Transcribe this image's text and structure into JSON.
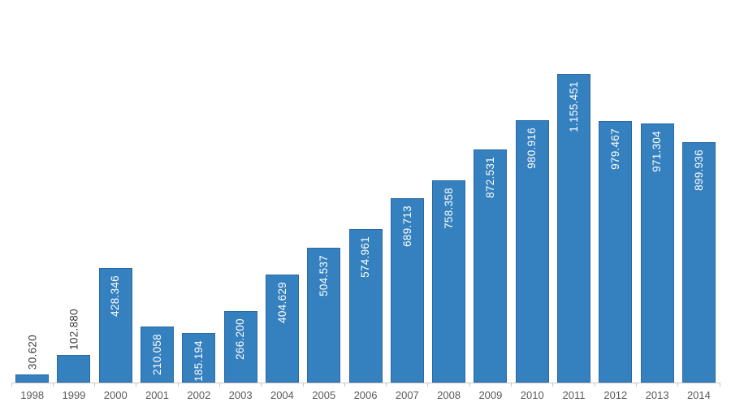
{
  "chart_data": {
    "type": "bar",
    "title": "",
    "xlabel": "",
    "ylabel": "",
    "categories": [
      "1998",
      "1999",
      "2000",
      "2001",
      "2002",
      "2003",
      "2004",
      "2005",
      "2006",
      "2007",
      "2008",
      "2009",
      "2010",
      "2011",
      "2012",
      "2013",
      "2014"
    ],
    "values": [
      30620,
      102880,
      428346,
      210058,
      185194,
      266200,
      404629,
      504537,
      574961,
      689713,
      758358,
      872531,
      980916,
      1155451,
      979467,
      971304,
      899936
    ],
    "value_labels": [
      "30.620",
      "102.880",
      "428.346",
      "210.058",
      "185.194",
      "266.200",
      "404.629",
      "504.537",
      "574.961",
      "689.713",
      "758.358",
      "872.531",
      "980.916",
      "1.155.451",
      "979.467",
      "971.304",
      "899.936"
    ],
    "label_placement": [
      "outside",
      "outside",
      "inside",
      "inside",
      "inside",
      "inside",
      "inside",
      "inside",
      "inside",
      "inside",
      "inside",
      "inside",
      "inside",
      "inside",
      "inside",
      "inside",
      "inside"
    ],
    "ylim": [
      0,
      1155451
    ],
    "grid": "off",
    "legend": "none",
    "colors": {
      "bar_fill": "#3580BE",
      "bar_border": "#2B69A4",
      "label_inside": "#FFFFFF",
      "label_outside": "#3D3D3D",
      "axis_line": "#C8C8C8",
      "axis_text": "#595959"
    }
  }
}
